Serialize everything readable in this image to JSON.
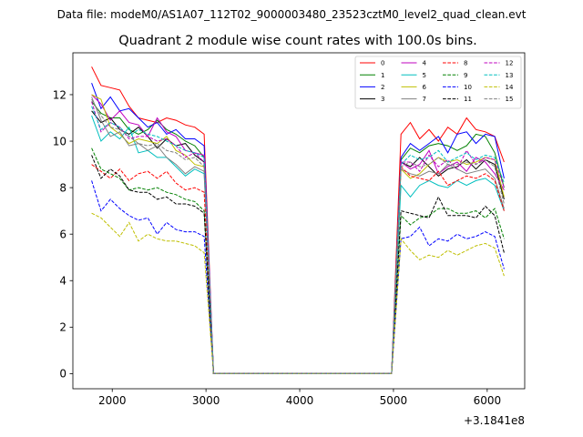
{
  "figure": {
    "suptitle": "Data file: modeM0/AS1A07_112T02_9000003480_23523cztM0_level2_quad_clean.evt"
  },
  "chart_data": {
    "type": "line",
    "title": "Quadrant 2 module wise count rates with 100.0s bins.",
    "xlabel": "",
    "ylabel": "",
    "x_offset_label": "+3.1841e8",
    "xlim": [
      1580,
      6400
    ],
    "ylim": [
      -0.65,
      13.8
    ],
    "xticks": [
      2000,
      3000,
      4000,
      5000,
      6000
    ],
    "yticks": [
      0,
      2,
      4,
      6,
      8,
      10,
      12
    ],
    "grid": false,
    "legend": {
      "placement": "top-right",
      "columns": 4
    },
    "x": [
      1780,
      1880,
      1980,
      2080,
      2180,
      2280,
      2380,
      2480,
      2580,
      2680,
      2780,
      2880,
      2980,
      3080,
      3180,
      3280,
      3380,
      3480,
      3580,
      3680,
      3780,
      3880,
      3980,
      4080,
      4180,
      4280,
      4380,
      4480,
      4580,
      4680,
      4780,
      4880,
      4980,
      5080,
      5180,
      5280,
      5380,
      5480,
      5580,
      5680,
      5780,
      5880,
      5980,
      6080,
      6180
    ],
    "series": [
      {
        "name": "0",
        "color": "#ff0000",
        "dash": "solid",
        "values": [
          13.2,
          12.4,
          12.3,
          12.2,
          11.5,
          11.0,
          10.9,
          10.8,
          11.0,
          10.9,
          10.7,
          10.6,
          10.3,
          0,
          0,
          0,
          0,
          0,
          0,
          0,
          0,
          0,
          0,
          0,
          0,
          0,
          0,
          0,
          0,
          0,
          0,
          0,
          0,
          10.3,
          10.8,
          10.1,
          10.5,
          10.0,
          10.6,
          10.3,
          11.0,
          10.5,
          10.4,
          10.2,
          9.1
        ]
      },
      {
        "name": "1",
        "color": "#008000",
        "dash": "solid",
        "values": [
          11.7,
          11.2,
          11.0,
          11.0,
          10.5,
          10.3,
          10.5,
          10.9,
          10.5,
          10.3,
          10.0,
          9.8,
          9.3,
          0,
          0,
          0,
          0,
          0,
          0,
          0,
          0,
          0,
          0,
          0,
          0,
          0,
          0,
          0,
          0,
          0,
          0,
          0,
          0,
          9.2,
          9.7,
          9.5,
          9.8,
          9.9,
          9.8,
          9.6,
          9.8,
          10.3,
          10.2,
          9.5,
          8.0
        ]
      },
      {
        "name": "2",
        "color": "#0000ff",
        "dash": "solid",
        "values": [
          12.5,
          11.4,
          11.9,
          11.3,
          11.4,
          11.0,
          10.6,
          10.8,
          10.3,
          10.5,
          10.1,
          10.1,
          9.8,
          0,
          0,
          0,
          0,
          0,
          0,
          0,
          0,
          0,
          0,
          0,
          0,
          0,
          0,
          0,
          0,
          0,
          0,
          0,
          0,
          9.3,
          9.9,
          9.6,
          9.9,
          10.2,
          9.5,
          10.3,
          10.4,
          9.9,
          10.3,
          10.2,
          8.4
        ]
      },
      {
        "name": "3",
        "color": "#000000",
        "dash": "solid",
        "values": [
          11.3,
          10.8,
          11.0,
          10.5,
          10.3,
          10.6,
          10.2,
          9.7,
          10.1,
          9.8,
          9.9,
          9.4,
          9.1,
          0,
          0,
          0,
          0,
          0,
          0,
          0,
          0,
          0,
          0,
          0,
          0,
          0,
          0,
          0,
          0,
          0,
          0,
          0,
          0,
          9.1,
          8.9,
          9.3,
          8.9,
          8.5,
          8.8,
          8.9,
          9.2,
          8.8,
          9.2,
          9.0,
          7.5
        ]
      },
      {
        "name": "4",
        "color": "#bf00bf",
        "dash": "solid",
        "values": [
          12.0,
          11.6,
          10.9,
          11.3,
          10.8,
          10.7,
          10.2,
          11.0,
          10.4,
          10.2,
          9.6,
          9.5,
          9.4,
          0,
          0,
          0,
          0,
          0,
          0,
          0,
          0,
          0,
          0,
          0,
          0,
          0,
          0,
          0,
          0,
          0,
          0,
          0,
          0,
          9.1,
          8.8,
          9.0,
          9.6,
          8.6,
          8.9,
          9.1,
          8.7,
          9.3,
          9.1,
          8.6,
          7.9
        ]
      },
      {
        "name": "5",
        "color": "#00bfbf",
        "dash": "solid",
        "values": [
          11.1,
          10.0,
          10.4,
          10.1,
          10.6,
          9.5,
          9.6,
          9.3,
          9.3,
          8.9,
          8.5,
          8.8,
          8.6,
          0,
          0,
          0,
          0,
          0,
          0,
          0,
          0,
          0,
          0,
          0,
          0,
          0,
          0,
          0,
          0,
          0,
          0,
          0,
          0,
          8.1,
          7.6,
          8.1,
          8.3,
          8.1,
          8.0,
          8.3,
          8.1,
          8.3,
          8.4,
          8.1,
          7.0
        ]
      },
      {
        "name": "6",
        "color": "#bfbf00",
        "dash": "solid",
        "values": [
          12.0,
          11.8,
          10.6,
          10.3,
          9.9,
          10.1,
          10.0,
          9.9,
          10.2,
          9.6,
          9.4,
          9.0,
          8.9,
          0,
          0,
          0,
          0,
          0,
          0,
          0,
          0,
          0,
          0,
          0,
          0,
          0,
          0,
          0,
          0,
          0,
          0,
          0,
          0,
          8.8,
          8.4,
          8.6,
          9.0,
          9.3,
          9.1,
          9.2,
          9.0,
          9.1,
          9.3,
          9.2,
          7.6
        ]
      },
      {
        "name": "7",
        "color": "#808080",
        "dash": "solid",
        "values": [
          11.9,
          10.9,
          10.2,
          10.4,
          9.8,
          9.9,
          9.6,
          9.8,
          9.3,
          9.0,
          8.6,
          8.9,
          8.7,
          0,
          0,
          0,
          0,
          0,
          0,
          0,
          0,
          0,
          0,
          0,
          0,
          0,
          0,
          0,
          0,
          0,
          0,
          0,
          0,
          8.8,
          8.6,
          8.5,
          8.7,
          8.6,
          9.0,
          8.8,
          8.6,
          8.7,
          8.8,
          8.4,
          7.1
        ]
      },
      {
        "name": "8",
        "color": "#ff0000",
        "dash": "dashed",
        "values": [
          9.0,
          8.7,
          8.4,
          8.8,
          8.3,
          8.6,
          8.7,
          8.4,
          8.7,
          8.2,
          7.9,
          8.0,
          7.8,
          0,
          0,
          0,
          0,
          0,
          0,
          0,
          0,
          0,
          0,
          0,
          0,
          0,
          0,
          0,
          0,
          0,
          0,
          0,
          0,
          8.9,
          8.5,
          8.4,
          8.3,
          8.7,
          8.1,
          8.3,
          8.5,
          8.4,
          8.6,
          8.3,
          7.0
        ]
      },
      {
        "name": "9",
        "color": "#008000",
        "dash": "dashed",
        "values": [
          9.7,
          8.8,
          8.6,
          8.4,
          7.9,
          8.0,
          7.9,
          8.0,
          7.8,
          7.7,
          7.5,
          7.4,
          7.0,
          0,
          0,
          0,
          0,
          0,
          0,
          0,
          0,
          0,
          0,
          0,
          0,
          0,
          0,
          0,
          0,
          0,
          0,
          0,
          0,
          6.8,
          6.4,
          6.7,
          6.8,
          7.1,
          7.1,
          6.9,
          6.9,
          7.0,
          6.7,
          7.1,
          5.8
        ]
      },
      {
        "name": "10",
        "color": "#0000ff",
        "dash": "dashed",
        "values": [
          8.3,
          7.0,
          7.5,
          7.1,
          6.8,
          6.6,
          6.7,
          6.0,
          6.5,
          6.2,
          6.1,
          6.1,
          5.9,
          0,
          0,
          0,
          0,
          0,
          0,
          0,
          0,
          0,
          0,
          0,
          0,
          0,
          0,
          0,
          0,
          0,
          0,
          0,
          0,
          5.8,
          5.9,
          6.3,
          5.5,
          5.8,
          5.7,
          6.0,
          5.8,
          5.9,
          6.1,
          5.9,
          4.5
        ]
      },
      {
        "name": "11",
        "color": "#000000",
        "dash": "dashed",
        "values": [
          9.4,
          8.4,
          8.8,
          8.5,
          7.9,
          7.8,
          7.8,
          7.5,
          7.6,
          7.3,
          7.3,
          7.2,
          6.9,
          0,
          0,
          0,
          0,
          0,
          0,
          0,
          0,
          0,
          0,
          0,
          0,
          0,
          0,
          0,
          0,
          0,
          0,
          0,
          0,
          7.0,
          6.9,
          6.8,
          6.7,
          7.6,
          6.8,
          6.8,
          6.8,
          6.7,
          7.2,
          6.8,
          5.2
        ]
      },
      {
        "name": "12",
        "color": "#bf00bf",
        "dash": "dashed",
        "values": [
          11.7,
          10.4,
          10.8,
          10.6,
          10.1,
          10.2,
          10.2,
          10.0,
          10.1,
          9.8,
          9.3,
          9.5,
          9.1,
          0,
          0,
          0,
          0,
          0,
          0,
          0,
          0,
          0,
          0,
          0,
          0,
          0,
          0,
          0,
          0,
          0,
          0,
          0,
          0,
          9.1,
          9.1,
          8.7,
          9.4,
          8.9,
          9.2,
          8.8,
          9.6,
          9.0,
          9.3,
          9.2,
          8.0
        ]
      },
      {
        "name": "13",
        "color": "#00bfbf",
        "dash": "dashed",
        "values": [
          11.5,
          10.5,
          10.8,
          10.6,
          10.2,
          10.5,
          10.3,
          10.2,
          10.0,
          9.8,
          9.6,
          9.5,
          9.3,
          0,
          0,
          0,
          0,
          0,
          0,
          0,
          0,
          0,
          0,
          0,
          0,
          0,
          0,
          0,
          0,
          0,
          0,
          0,
          0,
          9.0,
          9.4,
          9.2,
          9.3,
          9.6,
          9.1,
          9.3,
          9.5,
          9.2,
          9.4,
          9.3,
          8.2
        ]
      },
      {
        "name": "14",
        "color": "#bfbf00",
        "dash": "dashed",
        "values": [
          6.9,
          6.7,
          6.3,
          5.9,
          6.5,
          5.7,
          6.0,
          5.8,
          5.7,
          5.7,
          5.6,
          5.5,
          5.2,
          0,
          0,
          0,
          0,
          0,
          0,
          0,
          0,
          0,
          0,
          0,
          0,
          0,
          0,
          0,
          0,
          0,
          0,
          0,
          0,
          5.8,
          5.3,
          4.9,
          5.1,
          5.0,
          5.3,
          5.1,
          5.3,
          5.5,
          5.6,
          5.4,
          4.2
        ]
      },
      {
        "name": "15",
        "color": "#808080",
        "dash": "dashed",
        "values": [
          11.8,
          11.1,
          10.6,
          10.5,
          10.2,
          9.9,
          9.8,
          9.9,
          9.6,
          9.5,
          9.2,
          9.3,
          8.9,
          0,
          0,
          0,
          0,
          0,
          0,
          0,
          0,
          0,
          0,
          0,
          0,
          0,
          0,
          0,
          0,
          0,
          0,
          0,
          0,
          8.9,
          9.1,
          8.9,
          9.0,
          9.3,
          9.0,
          9.0,
          9.1,
          9.0,
          9.2,
          8.9,
          7.3
        ]
      }
    ]
  }
}
